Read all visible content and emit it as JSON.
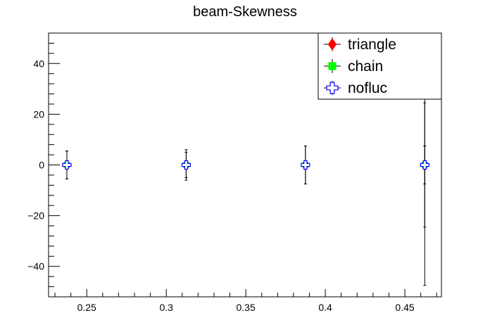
{
  "chart_data": {
    "type": "scatter",
    "title": "beam-Skewness",
    "xlabel": "",
    "ylabel": "",
    "xlim": [
      0.226,
      0.473
    ],
    "ylim": [
      -52,
      52
    ],
    "x_ticks": [
      0.25,
      0.3,
      0.35,
      0.4,
      0.45
    ],
    "x_tick_labels": [
      "0.25",
      "0.3",
      "0.35",
      "0.4",
      "0.45"
    ],
    "y_ticks": [
      -40,
      -20,
      0,
      20,
      40
    ],
    "y_tick_labels": [
      "−40",
      "−20",
      "0",
      "20",
      "40"
    ],
    "grid": false,
    "legend_position": "top-right",
    "series": [
      {
        "name": "triangle",
        "marker": "diamond",
        "color": "#ff0000",
        "x": [
          0.2375,
          0.3125,
          0.3875,
          0.4625
        ],
        "y": [
          0,
          0,
          0,
          0
        ],
        "yerr": [
          5.5,
          5.0,
          7.5,
          24.5
        ]
      },
      {
        "name": "chain",
        "marker": "square",
        "color": "#00ff00",
        "x": [
          0.2375,
          0.3125,
          0.3875,
          0.4625
        ],
        "y": [
          0,
          0,
          0,
          0
        ],
        "yerr": [
          5.5,
          6.0,
          7.5,
          47.5
        ]
      },
      {
        "name": "nofluc",
        "marker": "open-cross",
        "color": "#0000ff",
        "x": [
          0.2375,
          0.3125,
          0.3875,
          0.4625
        ],
        "y": [
          0,
          0,
          0,
          0
        ],
        "yerr": [
          1.5,
          1.5,
          1.5,
          7.5
        ]
      }
    ]
  }
}
